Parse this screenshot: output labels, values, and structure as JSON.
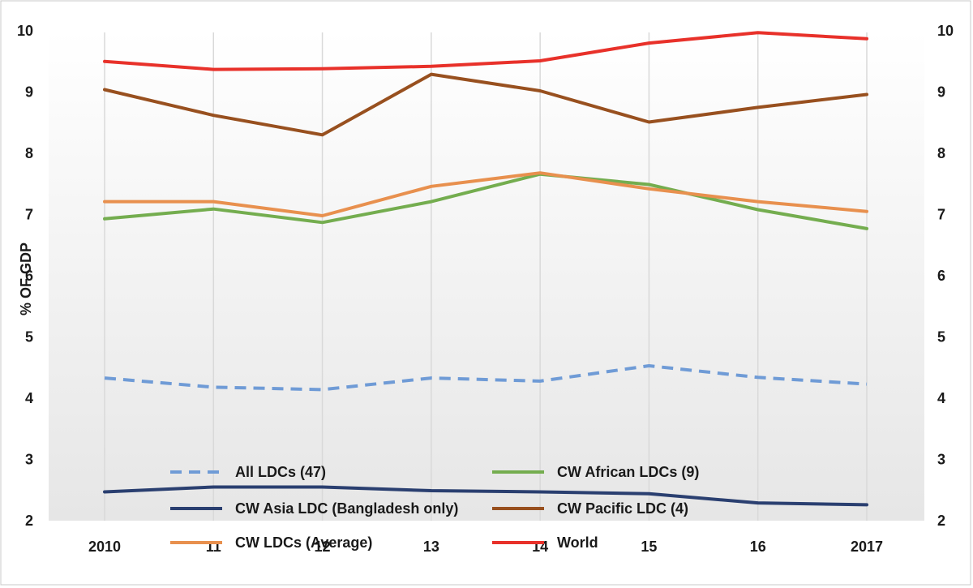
{
  "chart_data": {
    "type": "line",
    "ylabel": "% OF GDP",
    "categories": [
      "2010",
      "11",
      "12",
      "13",
      "14",
      "15",
      "16",
      "2017"
    ],
    "ylim": [
      2,
      10
    ],
    "yticks": [
      2,
      3,
      4,
      5,
      6,
      7,
      8,
      9,
      10
    ],
    "grid": "vertical",
    "legend_position": "bottom",
    "series": [
      {
        "name": "All LDCs (47)",
        "color": "#6f9bd6",
        "dash": true,
        "values": [
          4.33,
          4.18,
          4.14,
          4.33,
          4.28,
          4.53,
          4.34,
          4.23
        ]
      },
      {
        "name": "CW African LDCs (9)",
        "color": "#74ad4f",
        "dash": false,
        "values": [
          6.93,
          7.09,
          6.87,
          7.21,
          7.66,
          7.49,
          7.08,
          6.77
        ]
      },
      {
        "name": "CW Asia LDC (Bangladesh only)",
        "color": "#2a3f70",
        "dash": false,
        "values": [
          2.47,
          2.55,
          2.55,
          2.49,
          2.47,
          2.44,
          2.29,
          2.26
        ]
      },
      {
        "name": "CW Pacific LDC (4)",
        "color": "#98501f",
        "dash": false,
        "values": [
          9.04,
          8.62,
          8.3,
          9.29,
          9.02,
          8.51,
          8.75,
          8.96
        ]
      },
      {
        "name": "CW LDCs (Average)",
        "color": "#e8904e",
        "dash": false,
        "values": [
          7.21,
          7.21,
          6.98,
          7.46,
          7.68,
          7.42,
          7.21,
          7.05
        ]
      },
      {
        "name": "World",
        "color": "#e8312a",
        "dash": false,
        "values": [
          9.5,
          9.37,
          9.38,
          9.42,
          9.51,
          9.8,
          9.97,
          9.87
        ]
      }
    ]
  }
}
